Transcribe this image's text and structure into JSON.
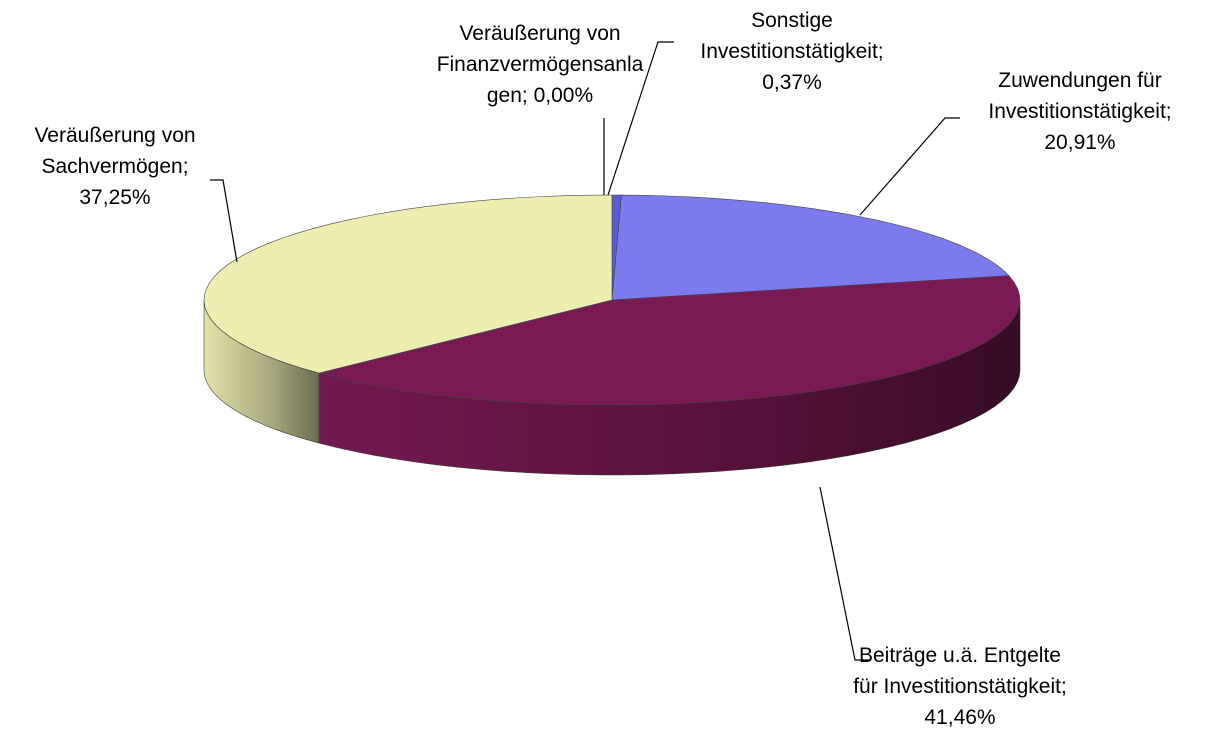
{
  "chart_data": {
    "type": "pie3d",
    "categories": [
      "Veräußerung von Finanzvermögensanlagen",
      "Sonstige Investitionstätigkeit",
      "Zuwendungen für Investitionstätigkeit",
      "Beiträge u.ä. Entgelte für Investitionstätigkeit",
      "Veräußerung von Sachvermögen"
    ],
    "label_separator": ";",
    "values": [
      0.0,
      0.37,
      20.91,
      41.46,
      37.25
    ],
    "value_labels": [
      "0,00%",
      "0,37%",
      "20,91%",
      "41,46%",
      "37,25%"
    ],
    "colors": [
      "#9999ff",
      "#5b5bd6",
      "#7b7bef",
      "#7a1a55",
      "#eeeeb0"
    ]
  }
}
